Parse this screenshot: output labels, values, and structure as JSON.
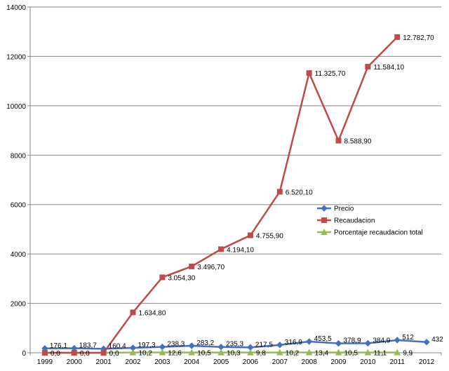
{
  "chart_data": {
    "type": "line",
    "title": "",
    "xlabel": "",
    "ylabel": "",
    "ylim": [
      0,
      14000
    ],
    "yticks": [
      0,
      2000,
      4000,
      6000,
      8000,
      10000,
      12000,
      14000
    ],
    "grid": "horizontal",
    "legend_position": "right",
    "categories": [
      "1999",
      "2000",
      "2001",
      "2002",
      "2003",
      "2004",
      "2005",
      "2006",
      "2007",
      "2008",
      "2009",
      "2010",
      "2011",
      "2012"
    ],
    "series": [
      {
        "name": "Precio",
        "color": "#3f72bf",
        "marker": "diamond",
        "values": [
          176.1,
          183.7,
          160.4,
          197.3,
          238.3,
          283.2,
          235.3,
          217.5,
          316.9,
          453.5,
          378.9,
          384.9,
          512,
          432
        ],
        "labels": [
          "176,1",
          "183,7",
          "160,4",
          "197,3",
          "238,3",
          "283,2",
          "235,3",
          "217,5",
          "316,9",
          "453,5",
          "378,9",
          "384,9",
          "512",
          "432"
        ]
      },
      {
        "name": "Recaudacion",
        "color": "#be4b48",
        "marker": "square",
        "values": [
          0,
          0,
          0,
          1634.8,
          3054.3,
          3496.7,
          4194.1,
          4755.9,
          6520.1,
          11325.7,
          8588.9,
          11584.1,
          12782.7,
          null
        ],
        "labels": [
          "",
          "",
          "",
          "1.634,80",
          "3.054,30",
          "3.496,70",
          "4.194,10",
          "4.755,90",
          "6.520,10",
          "11.325,70",
          "8.588,90",
          "11.584,10",
          "12.782,70",
          ""
        ]
      },
      {
        "name": "Porcentaje recaudacion total",
        "color": "#98b954",
        "marker": "triangle",
        "values": [
          0,
          0,
          0,
          10.2,
          12.6,
          10.5,
          10.3,
          9.8,
          10.2,
          13.4,
          10.5,
          11.1,
          9.9,
          null
        ],
        "labels": [
          "0,0",
          "0,0",
          "0,0",
          "10,2",
          "12,6",
          "10,5",
          "10,3",
          "9,8",
          "10,2",
          "13,4",
          "10,5",
          "11,1",
          "9,9",
          ""
        ]
      }
    ]
  }
}
